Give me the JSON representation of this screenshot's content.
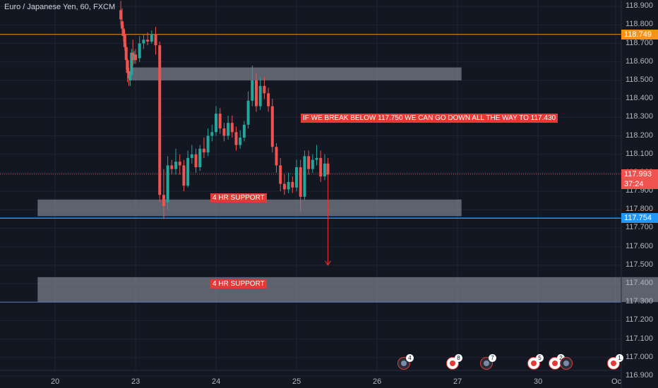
{
  "chart_title": "Euro / Japanese Yen, 60, FXCM",
  "colors": {
    "background": "#131722",
    "up": "#26a69a",
    "down": "#ef5350",
    "grid": "#1f2434",
    "orange_line": "#f7931a",
    "blue_line": "#2196f3",
    "zone": "#9aa0ad",
    "annotation": "#e53935"
  },
  "price_badges": {
    "orange_level": "118.749",
    "last_price": "117.993",
    "countdown": "37:24",
    "blue_level": "117.754"
  },
  "annotations": {
    "forecast": "IF WE BREAK BELOW 117.750 WE CAN GO DOWN ALL THE WAY TO 117.430",
    "support_1": "4 HR SUPPORT",
    "support_2": "4 HR SUPPORT"
  },
  "event_markers": [
    {
      "count": "4",
      "kind": "economic"
    },
    {
      "count": "8",
      "kind": "news"
    },
    {
      "count": "7",
      "kind": "economic"
    },
    {
      "count": "5",
      "kind": "news"
    },
    {
      "count": "2",
      "kind": "news"
    },
    {
      "count": "",
      "kind": "economic"
    },
    {
      "count": "1",
      "kind": "news"
    }
  ],
  "chart_data": {
    "type": "candlestick",
    "title": "Euro / Japanese Yen, 60, FXCM",
    "x_axis": {
      "ticks": [
        {
          "label": "20",
          "t": 20
        },
        {
          "label": "23",
          "t": 23
        },
        {
          "label": "24",
          "t": 24
        },
        {
          "label": "25",
          "t": 25
        },
        {
          "label": "26",
          "t": 26
        },
        {
          "label": "27",
          "t": 27
        },
        {
          "label": "30",
          "t": 28
        },
        {
          "label": "Oc",
          "t": 29
        }
      ]
    },
    "y_axis": {
      "range": [
        116.835,
        118.935
      ],
      "ticks": [
        "118.900",
        "118.800",
        "118.700",
        "118.600",
        "118.500",
        "118.400",
        "118.300",
        "118.200",
        "118.100",
        "118.000",
        "117.900",
        "117.800",
        "117.700",
        "117.600",
        "117.500",
        "117.400",
        "117.300",
        "117.200",
        "117.100",
        "117.000",
        "116.900"
      ]
    },
    "grid": true,
    "horizontal_levels": [
      {
        "value": 118.749,
        "style": "orange"
      },
      {
        "value": 117.993,
        "style": "last"
      },
      {
        "value": 117.754,
        "style": "blue"
      },
      {
        "value": 117.3,
        "style": "blue-thin"
      }
    ],
    "zones": [
      {
        "t_start": 22.85,
        "t_end": 27.05,
        "top": 118.57,
        "bottom": 118.5
      },
      {
        "t_start": 19.35,
        "t_end": 27.05,
        "top": 117.855,
        "bottom": 117.765,
        "label": "support_1"
      },
      {
        "t_start": 19.35,
        "t_end": 29.65,
        "top": 117.435,
        "bottom": 117.3,
        "label": "support_2"
      }
    ],
    "forecast_arrow": {
      "t": 25.39,
      "from": 117.99,
      "to": 117.5
    },
    "candles": [
      {
        "t": 22.45,
        "o": 118.88,
        "h": 118.93,
        "c": 118.83,
        "l": 118.8
      },
      {
        "t": 22.5,
        "o": 118.82,
        "h": 118.89,
        "c": 118.78,
        "l": 118.74
      },
      {
        "t": 22.55,
        "o": 118.78,
        "h": 118.8,
        "c": 118.74,
        "l": 118.71
      },
      {
        "t": 22.6,
        "o": 118.75,
        "h": 118.77,
        "c": 118.68,
        "l": 118.66
      },
      {
        "t": 22.65,
        "o": 118.68,
        "h": 118.7,
        "c": 118.61,
        "l": 118.56
      },
      {
        "t": 22.7,
        "o": 118.61,
        "h": 118.62,
        "c": 118.54,
        "l": 118.49
      },
      {
        "t": 22.75,
        "o": 118.55,
        "h": 118.57,
        "c": 118.51,
        "l": 118.47
      },
      {
        "t": 22.8,
        "o": 118.5,
        "h": 118.55,
        "c": 118.53,
        "l": 118.47
      },
      {
        "t": 22.85,
        "o": 118.53,
        "h": 118.67,
        "c": 118.65,
        "l": 118.52
      },
      {
        "t": 22.9,
        "o": 118.65,
        "h": 118.72,
        "c": 118.61,
        "l": 118.58
      },
      {
        "t": 22.95,
        "o": 118.61,
        "h": 118.66,
        "c": 118.64,
        "l": 118.59
      },
      {
        "t": 23.0,
        "o": 118.64,
        "h": 118.67,
        "c": 118.61,
        "l": 118.59
      },
      {
        "t": 23.05,
        "o": 118.62,
        "h": 118.74,
        "c": 118.7,
        "l": 118.6
      },
      {
        "t": 23.1,
        "o": 118.7,
        "h": 118.75,
        "c": 118.72,
        "l": 118.67
      },
      {
        "t": 23.15,
        "o": 118.72,
        "h": 118.76,
        "c": 118.71,
        "l": 118.69
      },
      {
        "t": 23.2,
        "o": 118.71,
        "h": 118.77,
        "c": 118.75,
        "l": 118.7
      },
      {
        "t": 23.25,
        "o": 118.75,
        "h": 118.79,
        "c": 118.69,
        "l": 118.64
      },
      {
        "t": 23.3,
        "o": 118.69,
        "h": 118.71,
        "c": 117.88,
        "l": 117.84
      },
      {
        "t": 23.35,
        "o": 117.88,
        "h": 118.02,
        "c": 117.82,
        "l": 117.75
      },
      {
        "t": 23.4,
        "o": 117.84,
        "h": 118.09,
        "c": 118.04,
        "l": 117.8
      },
      {
        "t": 23.45,
        "o": 118.04,
        "h": 118.07,
        "c": 118.02,
        "l": 117.99
      },
      {
        "t": 23.5,
        "o": 118.02,
        "h": 118.13,
        "c": 118.06,
        "l": 117.99
      },
      {
        "t": 23.55,
        "o": 118.06,
        "h": 118.1,
        "c": 118.04,
        "l": 117.99
      },
      {
        "t": 23.6,
        "o": 118.04,
        "h": 118.07,
        "c": 117.93,
        "l": 117.9
      },
      {
        "t": 23.65,
        "o": 117.93,
        "h": 118.12,
        "c": 118.08,
        "l": 117.92
      },
      {
        "t": 23.7,
        "o": 118.08,
        "h": 118.15,
        "c": 118.1,
        "l": 118.05
      },
      {
        "t": 23.75,
        "o": 118.1,
        "h": 118.13,
        "c": 118.03,
        "l": 118.0
      },
      {
        "t": 23.8,
        "o": 118.03,
        "h": 118.15,
        "c": 118.13,
        "l": 118.01
      },
      {
        "t": 23.85,
        "o": 118.13,
        "h": 118.19,
        "c": 118.11,
        "l": 118.08
      },
      {
        "t": 23.9,
        "o": 118.11,
        "h": 118.24,
        "c": 118.2,
        "l": 118.09
      },
      {
        "t": 23.95,
        "o": 118.2,
        "h": 118.26,
        "c": 118.22,
        "l": 118.17
      },
      {
        "t": 24.0,
        "o": 118.22,
        "h": 118.36,
        "c": 118.32,
        "l": 118.2
      },
      {
        "t": 24.05,
        "o": 118.32,
        "h": 118.35,
        "c": 118.24,
        "l": 118.21
      },
      {
        "t": 24.1,
        "o": 118.24,
        "h": 118.27,
        "c": 118.2,
        "l": 118.17
      },
      {
        "t": 24.15,
        "o": 118.2,
        "h": 118.31,
        "c": 118.27,
        "l": 118.18
      },
      {
        "t": 24.2,
        "o": 118.27,
        "h": 118.31,
        "c": 118.22,
        "l": 118.19
      },
      {
        "t": 24.25,
        "o": 118.22,
        "h": 118.25,
        "c": 118.15,
        "l": 118.12
      },
      {
        "t": 24.3,
        "o": 118.15,
        "h": 118.23,
        "c": 118.19,
        "l": 118.13
      },
      {
        "t": 24.35,
        "o": 118.19,
        "h": 118.28,
        "c": 118.26,
        "l": 118.17
      },
      {
        "t": 24.4,
        "o": 118.26,
        "h": 118.44,
        "c": 118.39,
        "l": 118.24
      },
      {
        "t": 24.45,
        "o": 118.39,
        "h": 118.58,
        "c": 118.5,
        "l": 118.36
      },
      {
        "t": 24.5,
        "o": 118.5,
        "h": 118.54,
        "c": 118.36,
        "l": 118.33
      },
      {
        "t": 24.55,
        "o": 118.36,
        "h": 118.52,
        "c": 118.47,
        "l": 118.34
      },
      {
        "t": 24.6,
        "o": 118.47,
        "h": 118.52,
        "c": 118.43,
        "l": 118.4
      },
      {
        "t": 24.65,
        "o": 118.43,
        "h": 118.46,
        "c": 118.36,
        "l": 118.33
      },
      {
        "t": 24.7,
        "o": 118.36,
        "h": 118.4,
        "c": 118.14,
        "l": 118.11
      },
      {
        "t": 24.75,
        "o": 118.14,
        "h": 118.16,
        "c": 118.04,
        "l": 118.0
      },
      {
        "t": 24.8,
        "o": 118.04,
        "h": 118.08,
        "c": 117.94,
        "l": 117.9
      },
      {
        "t": 24.85,
        "o": 117.94,
        "h": 117.99,
        "c": 117.91,
        "l": 117.88
      },
      {
        "t": 24.9,
        "o": 117.91,
        "h": 118.0,
        "c": 117.95,
        "l": 117.89
      },
      {
        "t": 24.95,
        "o": 117.95,
        "h": 117.98,
        "c": 117.92,
        "l": 117.89
      },
      {
        "t": 25.0,
        "o": 117.92,
        "h": 118.07,
        "c": 118.03,
        "l": 117.9
      },
      {
        "t": 25.05,
        "o": 118.03,
        "h": 118.07,
        "c": 117.87,
        "l": 117.79
      },
      {
        "t": 25.1,
        "o": 117.87,
        "h": 118.12,
        "c": 118.09,
        "l": 117.85
      },
      {
        "t": 25.15,
        "o": 118.09,
        "h": 118.12,
        "c": 118.02,
        "l": 117.99
      },
      {
        "t": 25.2,
        "o": 118.02,
        "h": 118.1,
        "c": 118.07,
        "l": 118.0
      },
      {
        "t": 25.25,
        "o": 118.07,
        "h": 118.15,
        "c": 118.08,
        "l": 118.04
      },
      {
        "t": 25.3,
        "o": 118.08,
        "h": 118.12,
        "c": 117.98,
        "l": 117.95
      },
      {
        "t": 25.35,
        "o": 117.98,
        "h": 118.1,
        "c": 118.05,
        "l": 117.96
      },
      {
        "t": 25.39,
        "o": 118.05,
        "h": 118.08,
        "c": 117.99,
        "l": 117.97
      }
    ]
  }
}
